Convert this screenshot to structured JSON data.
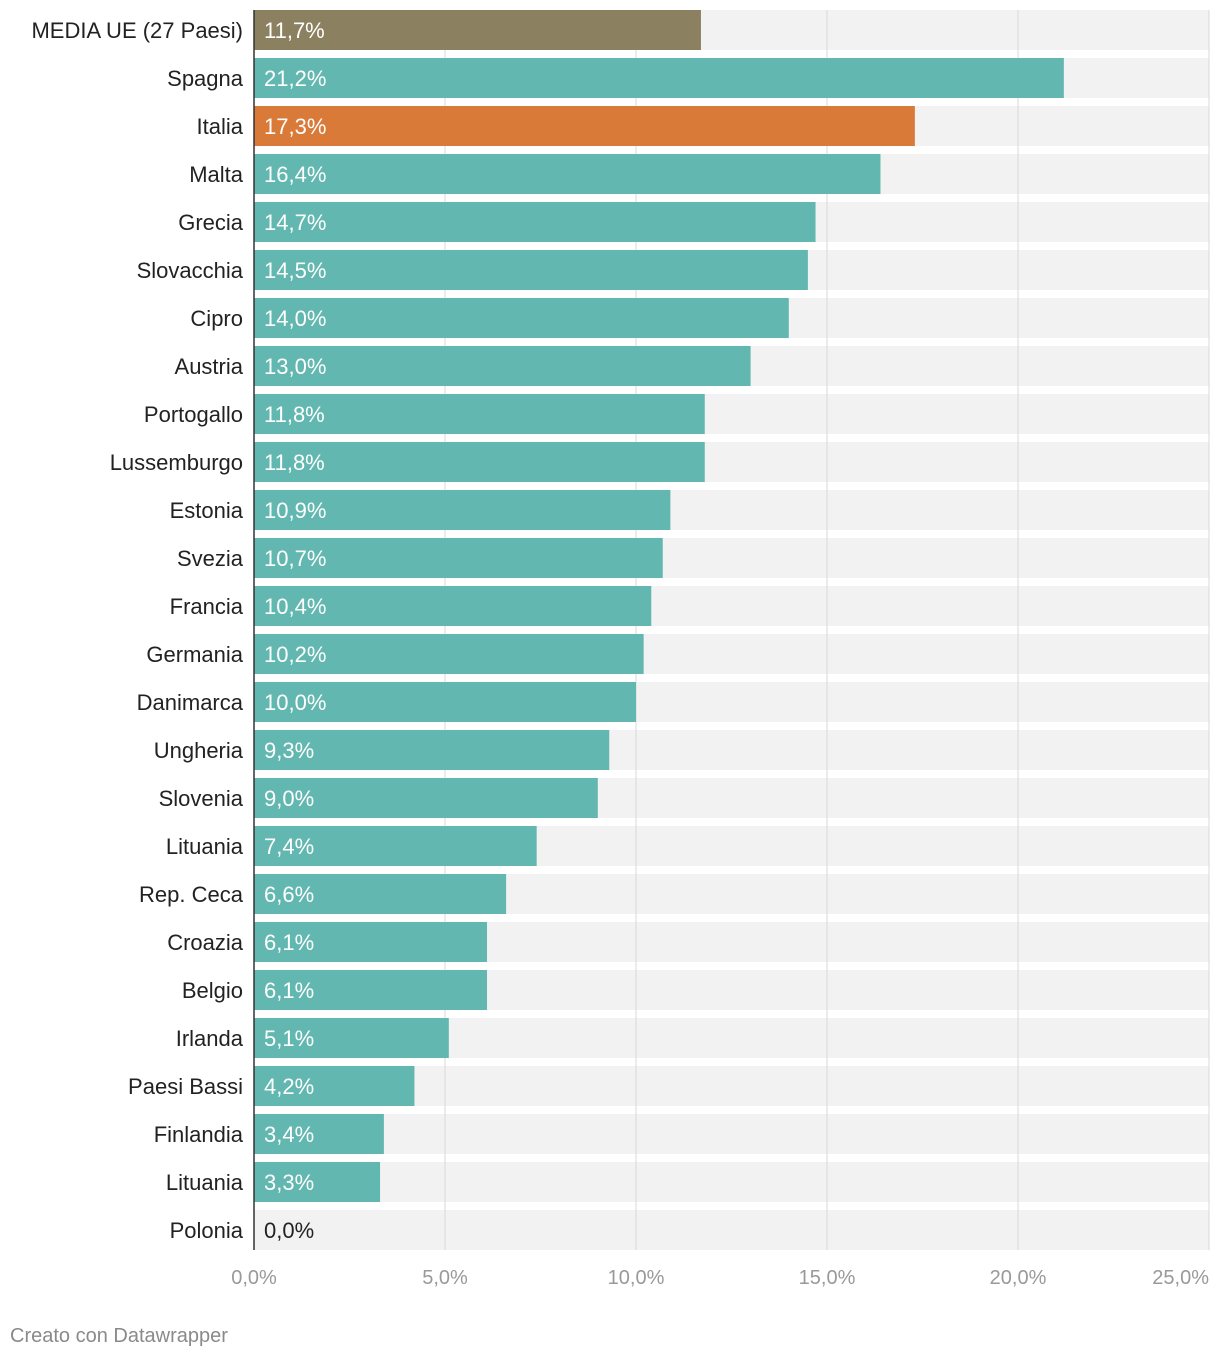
{
  "chart_data": {
    "type": "bar",
    "orientation": "horizontal",
    "categories": [
      "MEDIA UE (27 Paesi)",
      "Spagna",
      "Italia",
      "Malta",
      "Grecia",
      "Slovacchia",
      "Cipro",
      "Austria",
      "Portogallo",
      "Lussemburgo",
      "Estonia",
      "Svezia",
      "Francia",
      "Germania",
      "Danimarca",
      "Ungheria",
      "Slovenia",
      "Lituania",
      "Rep. Ceca",
      "Croazia",
      "Belgio",
      "Irlanda",
      "Paesi Bassi",
      "Finlandia",
      "Lituania",
      "Polonia"
    ],
    "values": [
      11.7,
      21.2,
      17.3,
      16.4,
      14.7,
      14.5,
      14.0,
      13.0,
      11.8,
      11.8,
      10.9,
      10.7,
      10.4,
      10.2,
      10.0,
      9.3,
      9.0,
      7.4,
      6.6,
      6.1,
      6.1,
      5.1,
      4.2,
      3.4,
      3.3,
      0.0
    ],
    "value_labels": [
      "11,7%",
      "21,2%",
      "17,3%",
      "16,4%",
      "14,7%",
      "14,5%",
      "14,0%",
      "13,0%",
      "11,8%",
      "11,8%",
      "10,9%",
      "10,7%",
      "10,4%",
      "10,2%",
      "10,0%",
      "9,3%",
      "9,0%",
      "7,4%",
      "6,6%",
      "6,1%",
      "6,1%",
      "5,1%",
      "4,2%",
      "3,4%",
      "3,3%",
      "0,0%"
    ],
    "x_ticks": [
      0,
      5,
      10,
      15,
      20,
      25
    ],
    "x_tick_labels": [
      "0,0%",
      "5,0%",
      "10,0%",
      "15,0%",
      "20,0%",
      "25,0%"
    ],
    "xlim": [
      0,
      25
    ],
    "grid": true,
    "colors": {
      "default": "#62b8b0",
      "eu_average": "#8b8060",
      "highlight": "#d97a38",
      "track": "#f2f2f2",
      "gridline": "#d8d8d8",
      "axis": "#333333"
    },
    "highlight": {
      "MEDIA UE (27 Paesi)": "eu_average",
      "Italia": "highlight"
    }
  },
  "footer": {
    "credit": "Creato con Datawrapper"
  }
}
